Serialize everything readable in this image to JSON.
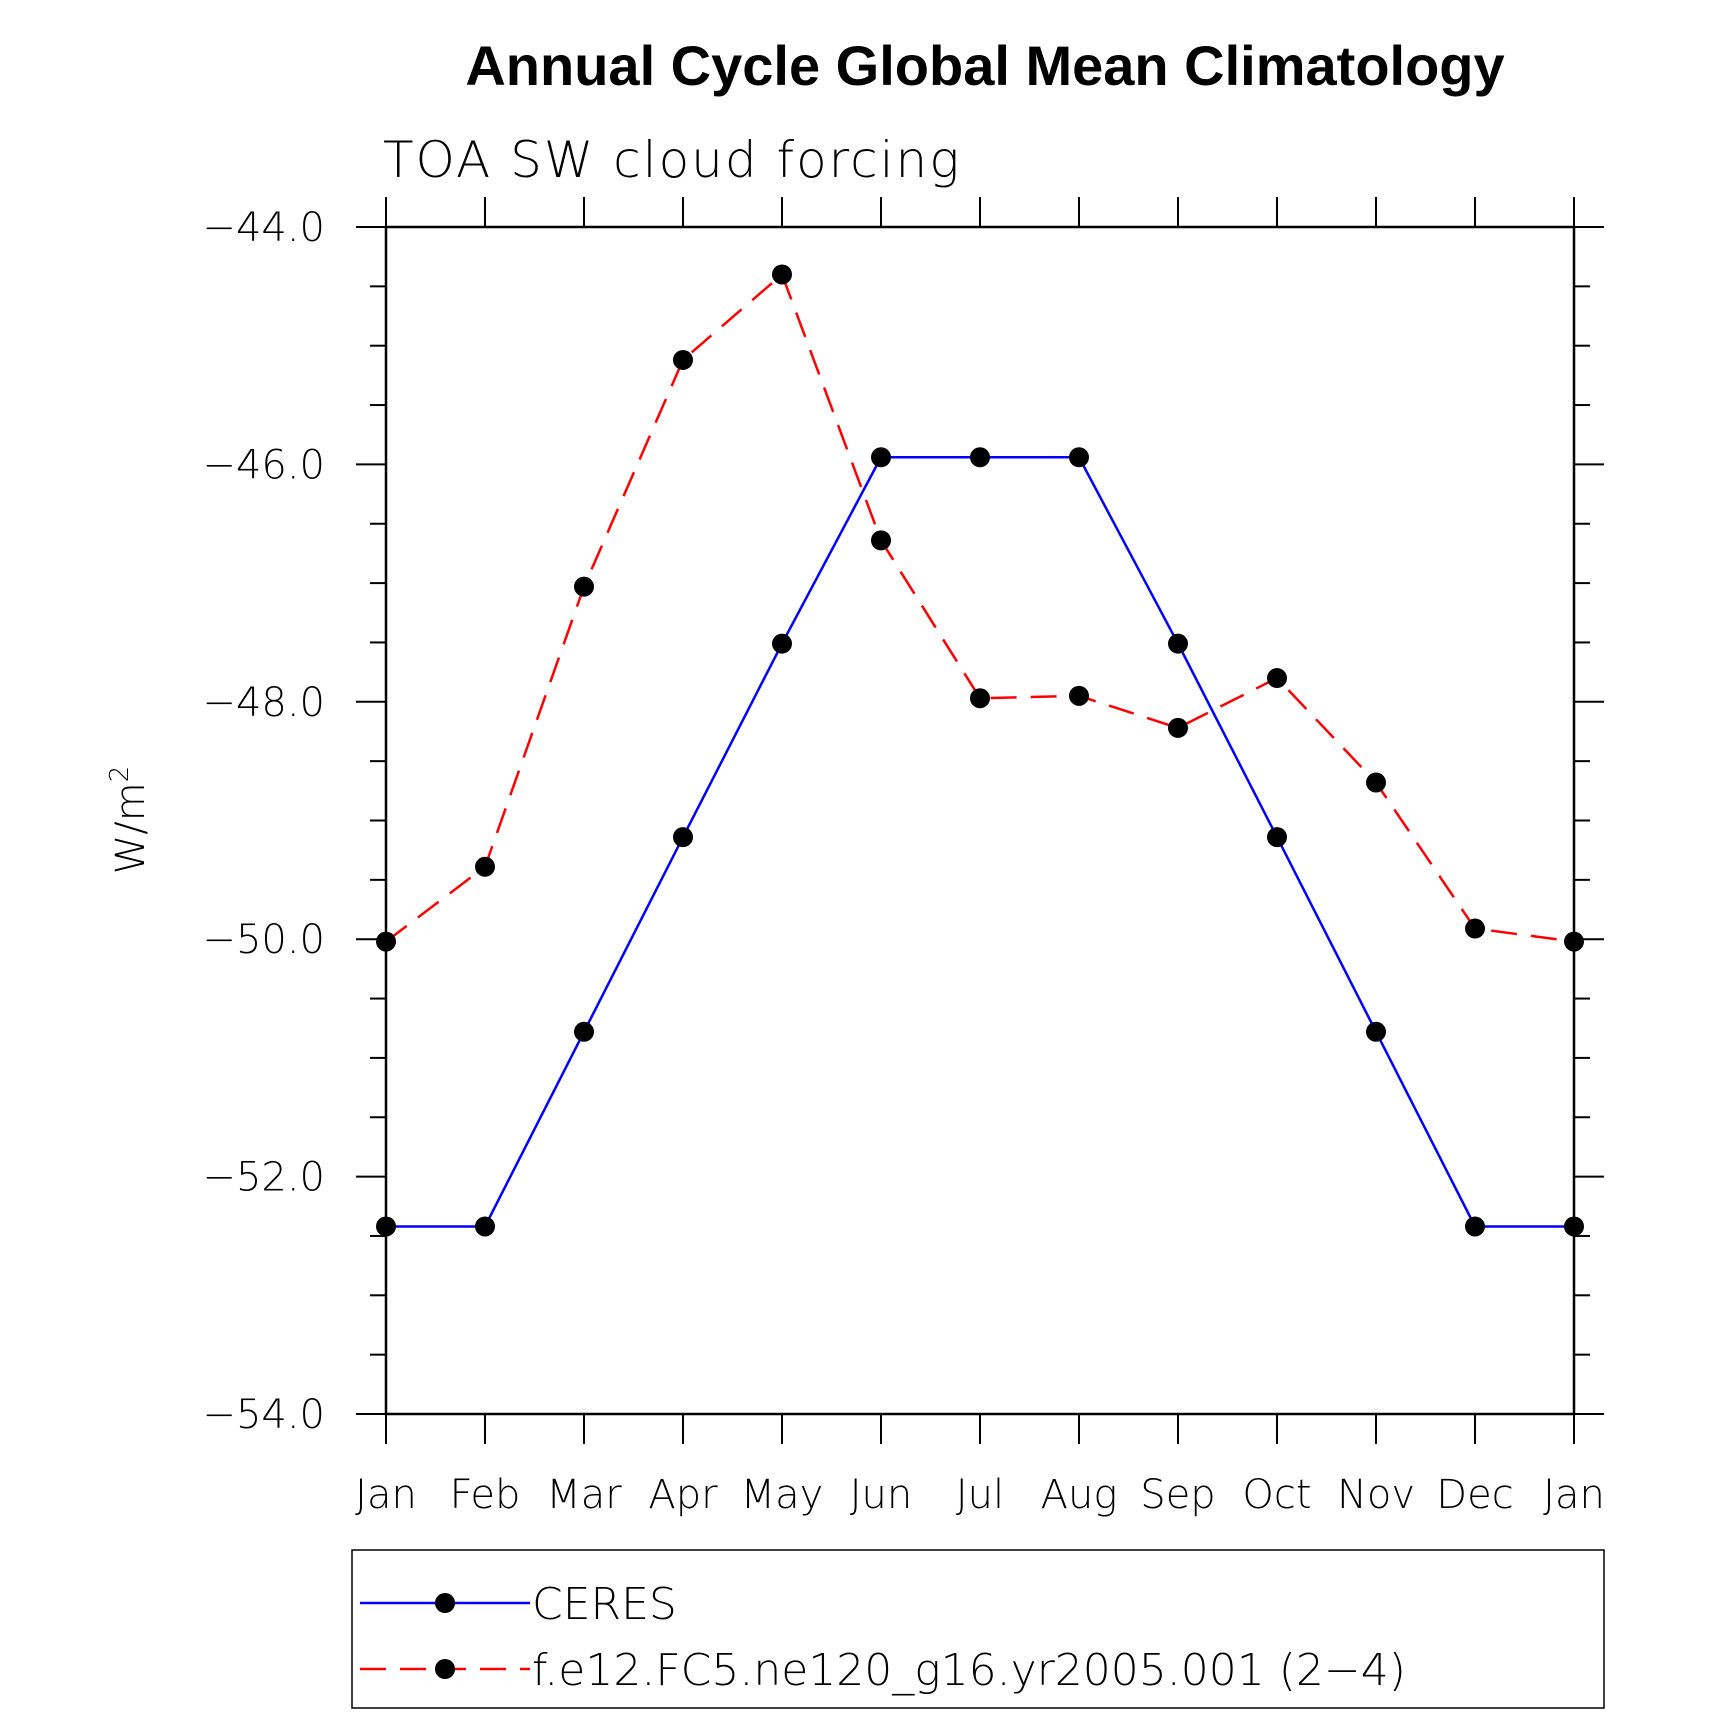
{
  "chart_data": {
    "type": "line",
    "title": "Annual Cycle Global Mean Climatology",
    "subtitle": "TOA SW cloud forcing",
    "ylabel": "W/m",
    "ylabel_sup": "2",
    "xlabel": "",
    "ylim": [
      -54.0,
      -44.0
    ],
    "y_major_ticks": [
      -44.0,
      -46.0,
      -48.0,
      -50.0,
      -52.0,
      -54.0
    ],
    "y_tick_labels": [
      "−44.0",
      "−46.0",
      "−48.0",
      "−50.0",
      "−52.0",
      "−54.0"
    ],
    "y_minor_step": 0.5,
    "categories": [
      "Jan",
      "Feb",
      "Mar",
      "Apr",
      "May",
      "Jun",
      "Jul",
      "Aug",
      "Sep",
      "Oct",
      "Nov",
      "Dec",
      "Jan"
    ],
    "grid": false,
    "legend_position": "bottom",
    "series": [
      {
        "name": "CERES",
        "color": "#0000ff",
        "dash": "solid",
        "marker_color": "#000000",
        "values": [
          -52.42,
          -52.42,
          -50.78,
          -49.14,
          -47.51,
          -45.94,
          -45.94,
          -45.94,
          -47.51,
          -49.14,
          -50.78,
          -52.42,
          -52.42
        ]
      },
      {
        "name": "f.e12.FC5.ne120_g16.yr2005.001 (2−4)",
        "color": "#ff0000",
        "dash": "dashed",
        "marker_color": "#000000",
        "values": [
          -50.02,
          -49.39,
          -47.03,
          -45.12,
          -44.4,
          -46.64,
          -47.97,
          -47.95,
          -48.22,
          -47.8,
          -48.68,
          -49.91,
          -50.02
        ]
      }
    ]
  }
}
